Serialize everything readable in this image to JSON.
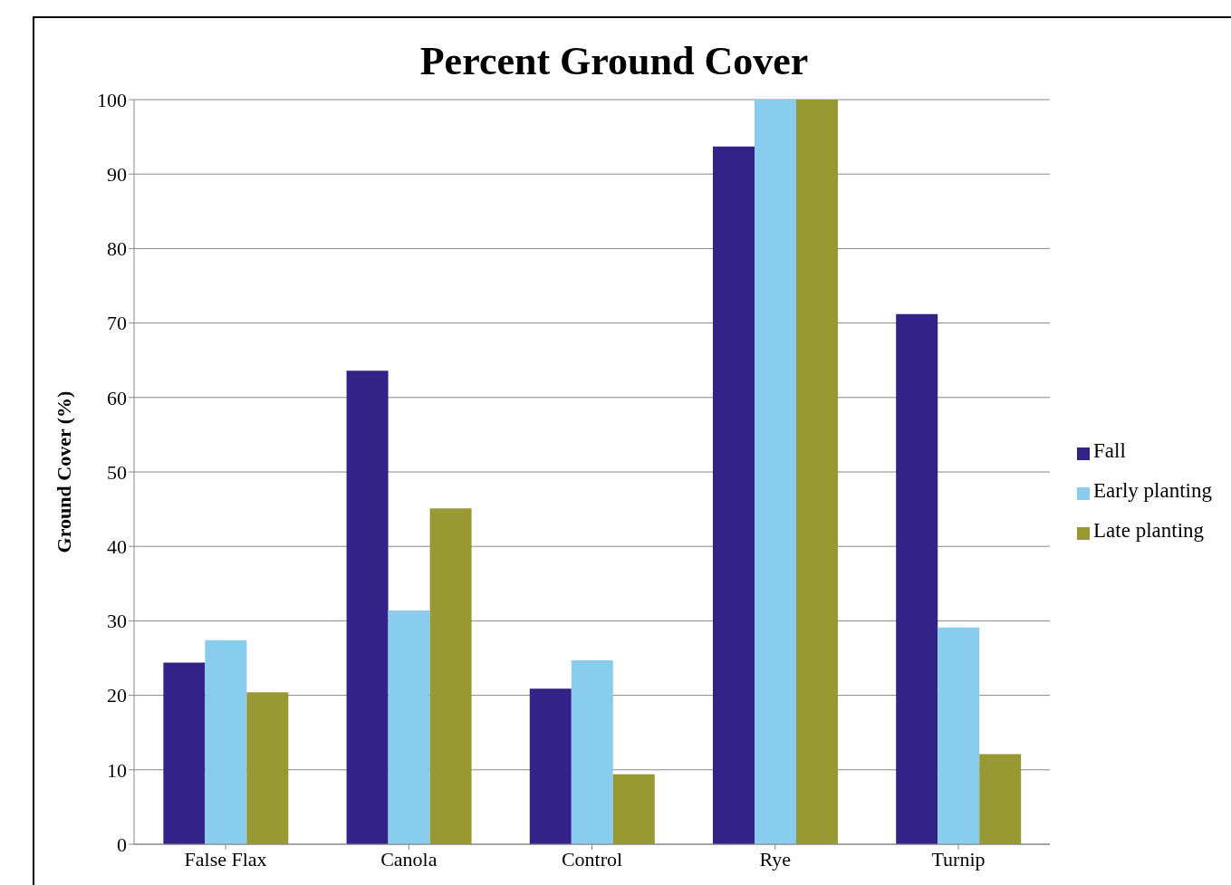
{
  "chart_data": {
    "type": "bar",
    "title": "Percent Ground Cover",
    "ylabel": "Ground Cover (%)",
    "categories": [
      "False Flax",
      "Canola",
      "Control",
      "Rye",
      "Turnip"
    ],
    "series": [
      {
        "name": "Fall",
        "color": "#332288",
        "values": [
          24.4,
          63.6,
          20.9,
          93.7,
          71.2
        ]
      },
      {
        "name": "Early planting",
        "color": "#88ccee",
        "values": [
          27.4,
          31.4,
          24.7,
          100,
          29.1
        ]
      },
      {
        "name": "Late planting",
        "color": "#999933",
        "values": [
          20.4,
          45.1,
          9.4,
          100,
          12.1
        ]
      }
    ],
    "ylim": [
      0,
      100
    ],
    "yticks": [
      0,
      10,
      20,
      30,
      40,
      50,
      60,
      70,
      80,
      90,
      100
    ],
    "grid": "y",
    "legend": "right"
  }
}
